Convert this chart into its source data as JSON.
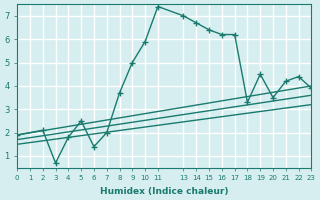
{
  "xlabel": "Humidex (Indice chaleur)",
  "ylabel": "",
  "bg_color": "#d6eef0",
  "grid_color": "#ffffff",
  "line_color": "#1a7a6e",
  "xlim": [
    0,
    23
  ],
  "ylim": [
    0.5,
    7.5
  ],
  "yticks": [
    1,
    2,
    3,
    4,
    5,
    6,
    7
  ],
  "line1_x": [
    0,
    2,
    3,
    4,
    5,
    6,
    7,
    8,
    9,
    10,
    11,
    13,
    14,
    15,
    16,
    17,
    18,
    19,
    20,
    21,
    22,
    23
  ],
  "line1_y": [
    1.9,
    2.1,
    0.7,
    1.8,
    2.5,
    1.4,
    2.0,
    3.7,
    5.0,
    5.9,
    7.4,
    7.0,
    6.7,
    6.4,
    6.2,
    6.2,
    3.3,
    4.5,
    3.5,
    4.2,
    4.4,
    3.9
  ],
  "line2_x": [
    0,
    23
  ],
  "line2_y": [
    1.9,
    4.0
  ],
  "line3_x": [
    0,
    23
  ],
  "line3_y": [
    1.7,
    3.6
  ],
  "line4_x": [
    0,
    23
  ],
  "line4_y": [
    1.5,
    3.2
  ]
}
